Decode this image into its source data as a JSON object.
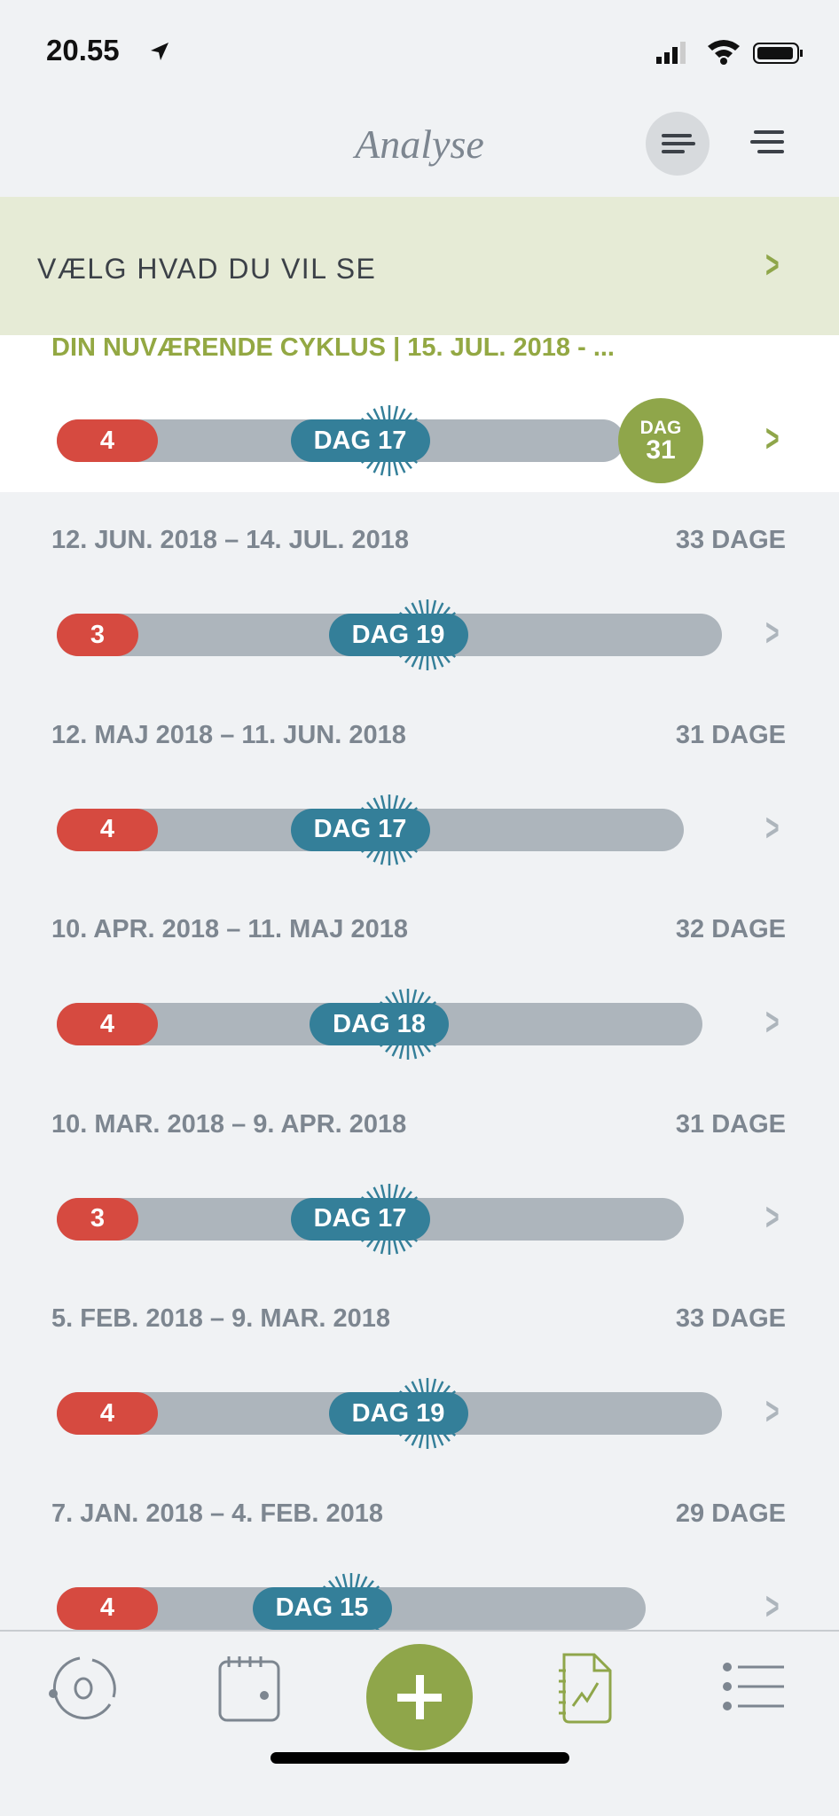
{
  "status": {
    "time": "20.55"
  },
  "header": {
    "title": "Analyse"
  },
  "banner": {
    "label": "VÆLG HVAD DU VIL SE"
  },
  "current": {
    "title": "DIN NUVÆRENDE CYKLUS | 15. JUL. 2018 - ...",
    "period_days": 4,
    "ovulation_day": 17,
    "ovulation_label": "DAG 17",
    "today_top": "DAG",
    "today_day": "31"
  },
  "cycles": [
    {
      "range": "12. JUN. 2018 – 14. JUL. 2018",
      "length": "33 DAGE",
      "days": 33,
      "period": "3",
      "ovulation_day": 19,
      "ovulation_label": "DAG 19"
    },
    {
      "range": "12. MAJ 2018 – 11. JUN. 2018",
      "length": "31 DAGE",
      "days": 31,
      "period": "4",
      "ovulation_day": 17,
      "ovulation_label": "DAG 17"
    },
    {
      "range": "10. APR. 2018 – 11. MAJ 2018",
      "length": "32 DAGE",
      "days": 32,
      "period": "4",
      "ovulation_day": 18,
      "ovulation_label": "DAG 18"
    },
    {
      "range": "10. MAR. 2018 – 9. APR. 2018",
      "length": "31 DAGE",
      "days": 31,
      "period": "3",
      "ovulation_day": 17,
      "ovulation_label": "DAG 17"
    },
    {
      "range": "5. FEB. 2018 – 9. MAR. 2018",
      "length": "33 DAGE",
      "days": 33,
      "period": "4",
      "ovulation_day": 19,
      "ovulation_label": "DAG 19"
    },
    {
      "range": "7. JAN. 2018 – 4. FEB. 2018",
      "length": "29 DAGE",
      "days": 29,
      "period": "4",
      "ovulation_day": 15,
      "ovulation_label": "DAG 15"
    }
  ],
  "colors": {
    "period": "#d64a40",
    "ovulation": "#347f99",
    "accent": "#8fa64a",
    "bar": "#adb5bc"
  },
  "tabs": [
    {
      "icon": "cycle-icon"
    },
    {
      "icon": "calendar-icon"
    },
    {
      "icon": "add-icon"
    },
    {
      "icon": "analysis-icon",
      "active": true
    },
    {
      "icon": "list-icon"
    }
  ]
}
